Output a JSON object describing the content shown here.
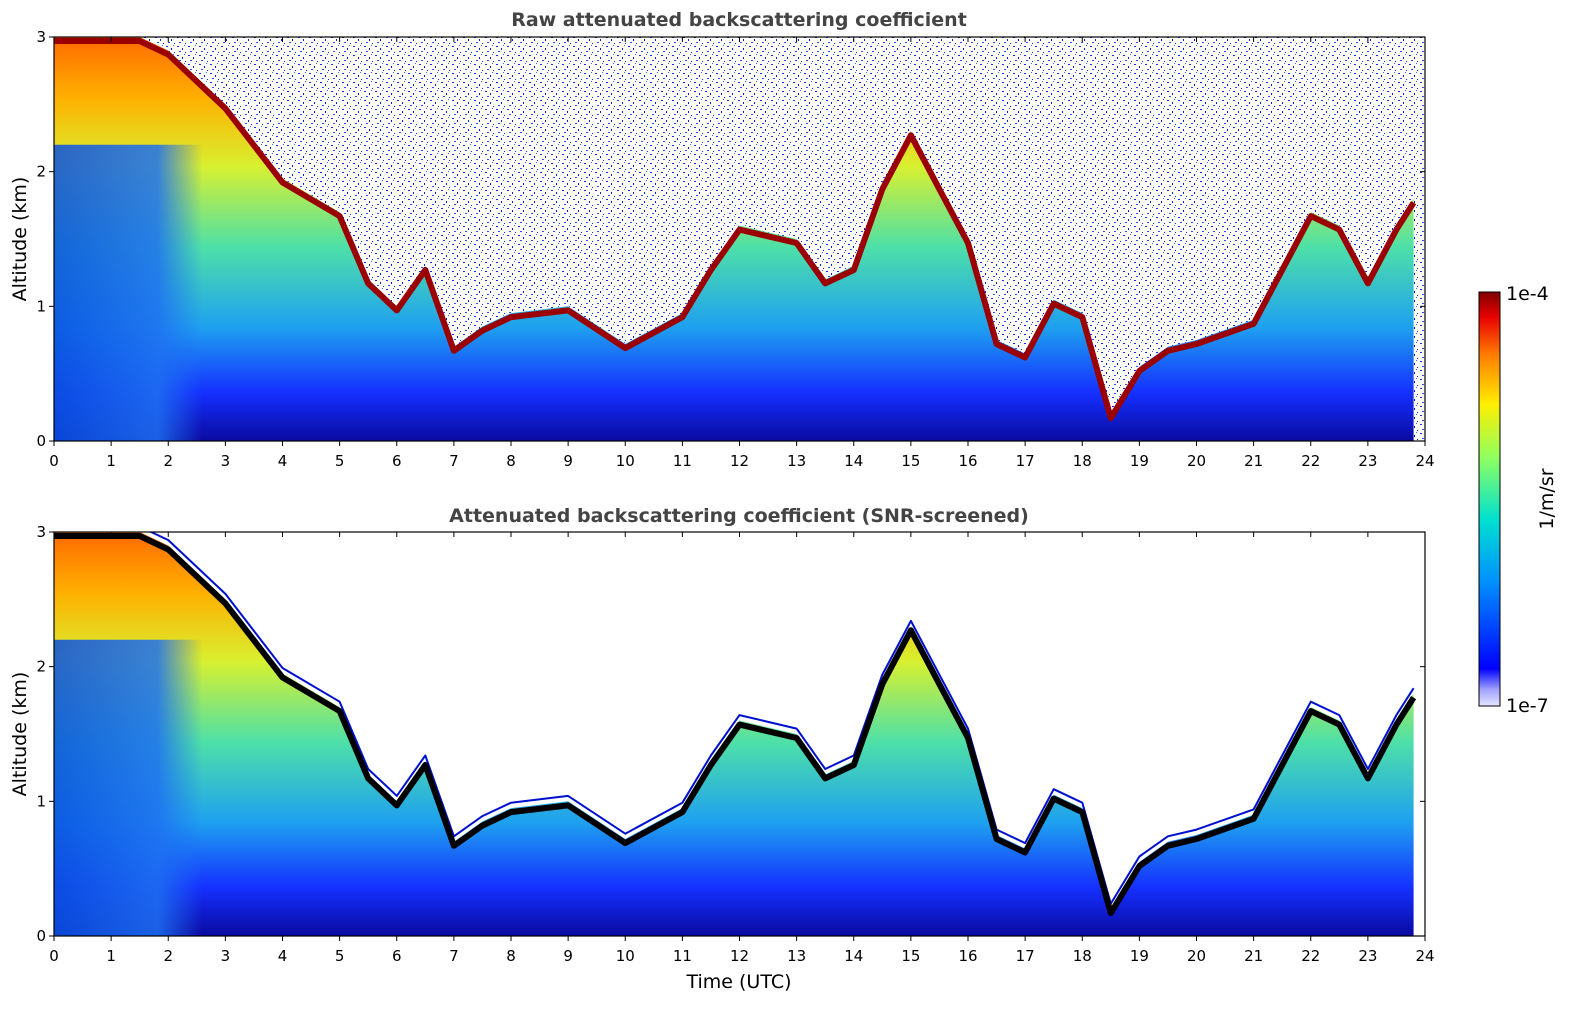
{
  "chart_data": [
    {
      "type": "heatmap",
      "title": "Raw attenuated backscattering coefficient",
      "xlabel": "",
      "ylabel": "Altitude (km)",
      "xlim": [
        0,
        24
      ],
      "ylim": [
        0,
        3
      ],
      "xticks": [
        "0",
        "1",
        "2",
        "3",
        "4",
        "5",
        "6",
        "7",
        "8",
        "9",
        "10",
        "11",
        "12",
        "13",
        "14",
        "15",
        "16",
        "17",
        "18",
        "19",
        "20",
        "21",
        "22",
        "23",
        "24"
      ],
      "yticks": [
        "0",
        "1",
        "2",
        "3"
      ],
      "colormap": "jet",
      "color_scale": "log",
      "screened": false,
      "boundary_layer_top_km": [
        [
          0.0,
          3.0
        ],
        [
          1.5,
          3.0
        ],
        [
          2.0,
          2.9
        ],
        [
          3.0,
          2.5
        ],
        [
          4.0,
          1.95
        ],
        [
          5.0,
          1.7
        ],
        [
          5.5,
          1.2
        ],
        [
          6.0,
          1.0
        ],
        [
          6.5,
          1.3
        ],
        [
          7.0,
          0.7
        ],
        [
          7.5,
          0.85
        ],
        [
          8.0,
          0.95
        ],
        [
          9.0,
          1.0
        ],
        [
          10.0,
          0.72
        ],
        [
          11.0,
          0.95
        ],
        [
          11.5,
          1.3
        ],
        [
          12.0,
          1.6
        ],
        [
          13.0,
          1.5
        ],
        [
          13.5,
          1.2
        ],
        [
          14.0,
          1.3
        ],
        [
          14.5,
          1.9
        ],
        [
          15.0,
          2.3
        ],
        [
          15.5,
          1.9
        ],
        [
          16.0,
          1.5
        ],
        [
          16.5,
          0.75
        ],
        [
          17.0,
          0.65
        ],
        [
          17.5,
          1.05
        ],
        [
          18.0,
          0.95
        ],
        [
          18.5,
          0.2
        ],
        [
          19.0,
          0.55
        ],
        [
          19.5,
          0.7
        ],
        [
          20.0,
          0.75
        ],
        [
          21.0,
          0.9
        ],
        [
          21.5,
          1.3
        ],
        [
          22.0,
          1.7
        ],
        [
          22.5,
          1.6
        ],
        [
          23.0,
          1.2
        ],
        [
          23.5,
          1.6
        ],
        [
          23.8,
          1.8
        ]
      ]
    },
    {
      "type": "heatmap",
      "title": "Attenuated backscattering coefficient (SNR-screened)",
      "xlabel": "Time (UTC)",
      "ylabel": "Altitude (km)",
      "xlim": [
        0,
        24
      ],
      "ylim": [
        0,
        3
      ],
      "xticks": [
        "0",
        "1",
        "2",
        "3",
        "4",
        "5",
        "6",
        "7",
        "8",
        "9",
        "10",
        "11",
        "12",
        "13",
        "14",
        "15",
        "16",
        "17",
        "18",
        "19",
        "20",
        "21",
        "22",
        "23",
        "24"
      ],
      "yticks": [
        "0",
        "1",
        "2",
        "3"
      ],
      "colormap": "jet",
      "color_scale": "log",
      "screened": true
    }
  ],
  "colorbar": {
    "label": "1/m/sr",
    "max_label": "1e-4",
    "min_label": "1e-7",
    "range": [
      1e-07,
      0.0001
    ],
    "scale": "log"
  },
  "colors": {
    "title": "#444444",
    "colormap_stops": [
      "#e6e6ff",
      "#0000ff",
      "#00c8ff",
      "#7dff7a",
      "#ffea00",
      "#ff5a00",
      "#7f0000"
    ]
  }
}
